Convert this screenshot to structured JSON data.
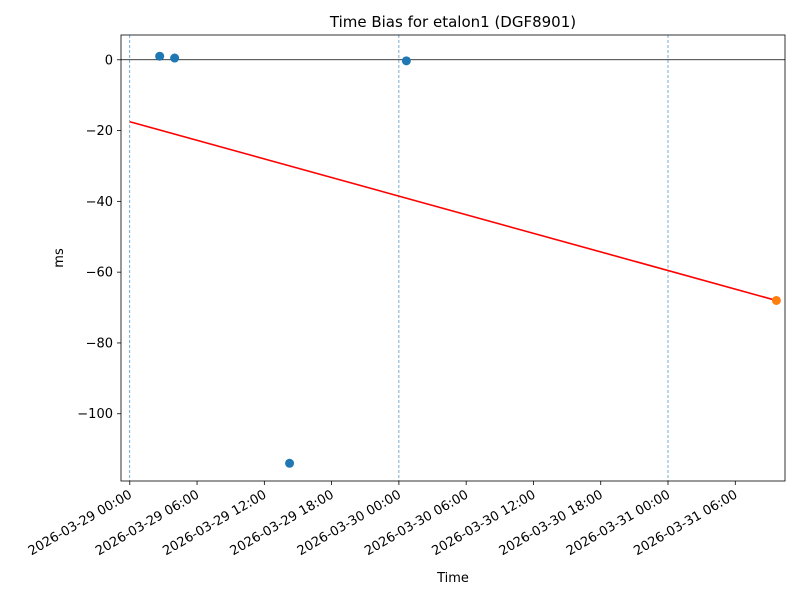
{
  "chart_data": {
    "type": "scatter",
    "title": "Time Bias for etalon1 (DGF8901)",
    "xlabel": "Time",
    "ylabel": "ms",
    "x_is_datetime": true,
    "xlim": [
      "2026-03-28 23:13",
      "2026-03-31 10:26"
    ],
    "ylim": [
      -119,
      7
    ],
    "x_ticks": [
      "2026-03-29 00:00",
      "2026-03-29 06:00",
      "2026-03-29 12:00",
      "2026-03-29 18:00",
      "2026-03-30 00:00",
      "2026-03-30 06:00",
      "2026-03-30 12:00",
      "2026-03-30 18:00",
      "2026-03-31 00:00",
      "2026-03-31 06:00"
    ],
    "x_tick_labels": [
      "2026-03-29 00:00",
      "2026-03-29 06:00",
      "2026-03-29 12:00",
      "2026-03-29 18:00",
      "2026-03-30 00:00",
      "2026-03-30 06:00",
      "2026-03-30 12:00",
      "2026-03-30 18:00",
      "2026-03-31 00:00",
      "2026-03-31 06:00"
    ],
    "y_ticks": [
      0,
      -20,
      -40,
      -60,
      -80,
      -100
    ],
    "y_tick_labels": [
      "0",
      "−20",
      "−40",
      "−60",
      "−80",
      "−100"
    ],
    "vertical_lines": [
      "2026-03-29 00:00",
      "2026-03-30 00:00",
      "2026-03-31 00:00"
    ],
    "horizontal_line": 0,
    "series": [
      {
        "kind": "points",
        "color": "#1f77b4",
        "points": [
          {
            "x": "2026-03-29 02:40",
            "y": 1.0
          },
          {
            "x": "2026-03-29 04:00",
            "y": 0.5
          },
          {
            "x": "2026-03-29 14:15",
            "y": -114.0
          },
          {
            "x": "2026-03-30 00:40",
            "y": -0.3
          }
        ]
      },
      {
        "kind": "line",
        "color": "#ff0000",
        "points": [
          {
            "x": "2026-03-29 00:00",
            "y": -17.5
          },
          {
            "x": "2026-03-31 09:40",
            "y": -68.0
          }
        ]
      },
      {
        "kind": "points",
        "color": "#ff7f0e",
        "points": [
          {
            "x": "2026-03-31 09:40",
            "y": -68.0
          }
        ]
      }
    ]
  }
}
